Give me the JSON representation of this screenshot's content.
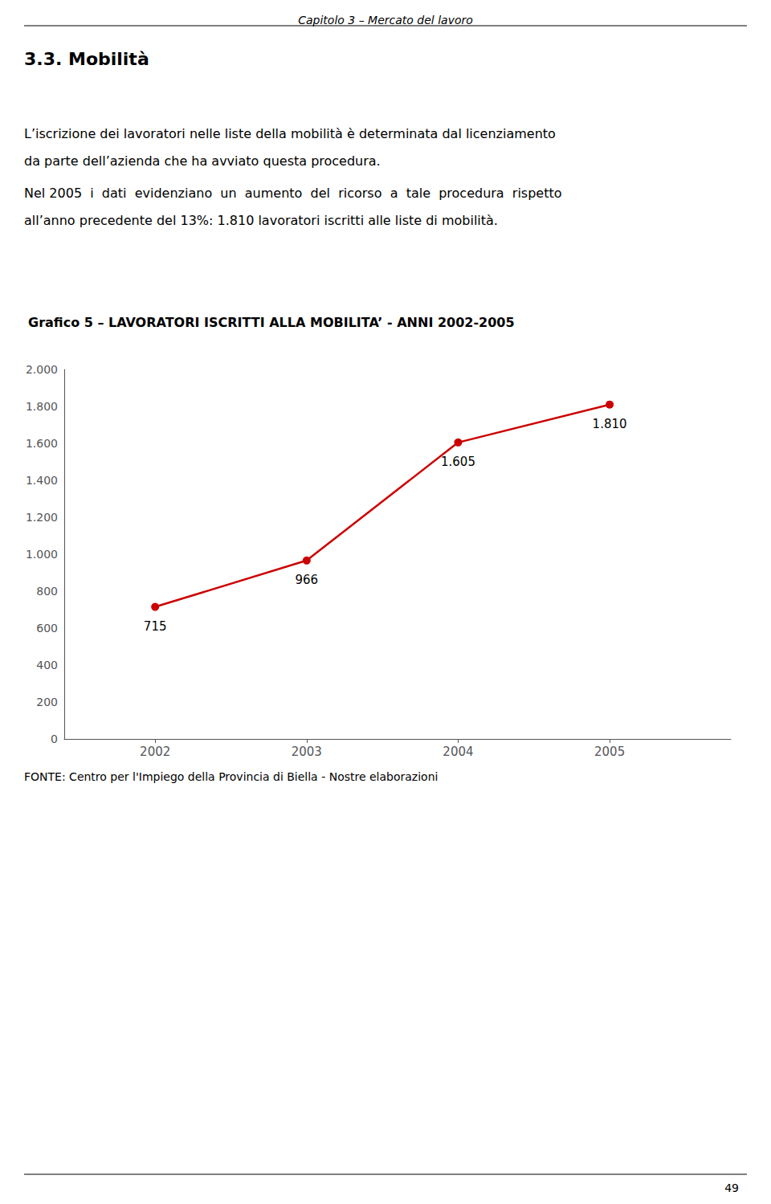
{
  "header": "Capitolo 3 – Mercato del lavoro",
  "section_title": "3.3. Mobilità",
  "paragraphs": [
    "L’iscrizione dei lavoratori nelle liste della mobilità è determinata dal licenziamento",
    "da parte dell’azienda che ha avviato questa procedura.",
    "Nel 2005  i  dati  evidenziano  un  aumento  del  ricorso  a  tale  procedura  rispetto",
    "all’anno precedente del 13%: 1.810 lavoratori iscritti alle liste di mobilità."
  ],
  "source": "FONTE: Centro per l'Impiego della Provincia di Biella - Nostre elaborazioni",
  "page_number": "49",
  "chart_data": {
    "type": "line",
    "title": "Grafico 5 – LAVORATORI ISCRITTI ALLA MOBILITA’ - ANNI 2002-2005",
    "x": [
      2002,
      2003,
      2004,
      2005
    ],
    "values": [
      715,
      966,
      1605,
      1810
    ],
    "value_labels": [
      "715",
      "966",
      "1.605",
      "1.810"
    ],
    "data_labels": true,
    "color": "#cc0000",
    "marker": "circle",
    "xlim": [
      2001.4,
      2005.8
    ],
    "xticks": [
      2002,
      2003,
      2004,
      2005
    ],
    "ylim": [
      0,
      2000
    ],
    "yticks": [
      0,
      200,
      400,
      600,
      800,
      {
        "value": 1000,
        "label": "1.000"
      },
      {
        "value": 1200,
        "label": "1.200"
      },
      {
        "value": 1400,
        "label": "1.400"
      },
      {
        "value": 1600,
        "label": "1.600"
      },
      {
        "value": 1800,
        "label": "1.800"
      },
      {
        "value": 2000,
        "label": "2.000"
      }
    ],
    "grid": false
  }
}
